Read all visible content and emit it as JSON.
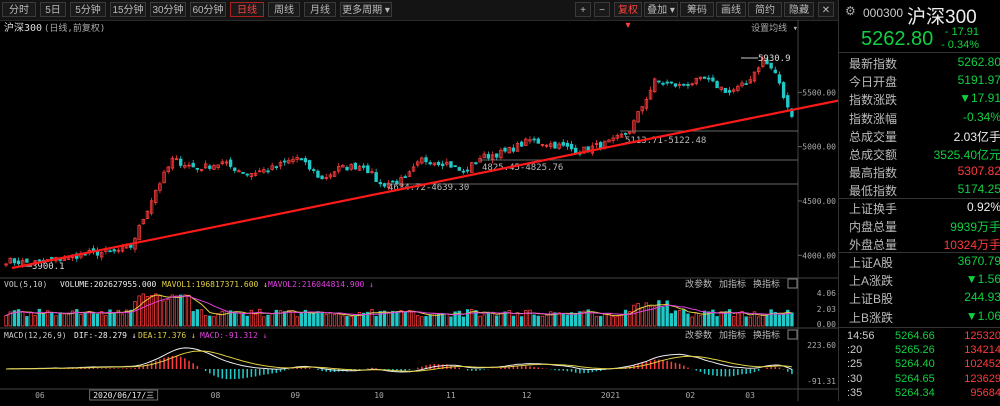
{
  "toolbar": {
    "buttons": [
      "分时",
      "5日",
      "5分钟",
      "15分钟",
      "30分钟",
      "60分钟",
      "日线",
      "周线",
      "月线",
      "更多周期"
    ],
    "active": "日线",
    "right_buttons": [
      "复权",
      "叠加",
      "筹码",
      "画线",
      "简约",
      "隐藏"
    ],
    "plus": "+",
    "minus": "−",
    "close": "✕"
  },
  "chart": {
    "name": "沪深300",
    "mode": "(日线,前复权)",
    "indicator_btn": "设置均线",
    "price_ticks": [
      {
        "label": "5500.00",
        "v": 5500
      },
      {
        "label": "5000.00",
        "v": 5000
      },
      {
        "label": "4500.00",
        "v": 4500
      },
      {
        "label": "4000.00",
        "v": 4000
      }
    ],
    "annotations": {
      "high": "5930.9",
      "low": "3900.1",
      "a1": "4634.72-4639.30",
      "a2": "4825.45-4825.76",
      "a3": "5113.71-5122.48"
    },
    "volume": {
      "label": "VOL(5,10)",
      "volume": "VOLUME:202627955.000",
      "mavol1": "MAVOL1:196817371.600",
      "mavol2": "MAVOL2:216044814.900",
      "ticks": [
        "4.06",
        "2.03",
        "0.00"
      ],
      "buttons": [
        "改参数",
        "加指标",
        "换指标"
      ]
    },
    "macd": {
      "label": "MACD(12,26,9)",
      "dif": "DIF:-28.279",
      "dea": "DEA:17.376",
      "macd": "MACD:-91.312",
      "ticks": [
        "223.60",
        "-91.31"
      ],
      "buttons": [
        "改参数",
        "加指标",
        "换指标"
      ]
    },
    "x_labels": [
      {
        "label": "06",
        "pos": 0.05
      },
      {
        "label": "2020/06/17/三",
        "pos": 0.155
      },
      {
        "label": "08",
        "pos": 0.27
      },
      {
        "label": "09",
        "pos": 0.37
      },
      {
        "label": "10",
        "pos": 0.475
      },
      {
        "label": "11",
        "pos": 0.565
      },
      {
        "label": "12",
        "pos": 0.66
      },
      {
        "label": "2021",
        "pos": 0.765
      },
      {
        "label": "02",
        "pos": 0.865
      },
      {
        "label": "03",
        "pos": 0.94
      }
    ]
  },
  "panel": {
    "code": "000300",
    "name": "沪深300",
    "price": "5262.80",
    "change": "- 17.91",
    "pct": "- 0.34%",
    "rows": [
      {
        "label": "最新指数",
        "val": "5262.80",
        "cls": "green"
      },
      {
        "label": "今日开盘",
        "val": "5191.97",
        "cls": "green"
      },
      {
        "label": "指数涨跌",
        "val": "▼17.91",
        "cls": "green"
      },
      {
        "label": "指数涨幅",
        "val": "-0.34%",
        "cls": "green"
      },
      {
        "label": "总成交量",
        "val": "2.03亿手",
        "cls": "white"
      },
      {
        "label": "总成交额",
        "val": "3525.40亿元",
        "cls": "green"
      },
      {
        "label": "最高指数",
        "val": "5307.82",
        "cls": "red"
      },
      {
        "label": "最低指数",
        "val": "5174.25",
        "cls": "green"
      }
    ],
    "rows2": [
      {
        "label": "上证换手",
        "val": "0.92%",
        "cls": "white"
      },
      {
        "label": "内盘总量",
        "val": "9939万手",
        "cls": "green"
      },
      {
        "label": "外盘总量",
        "val": "10324万手",
        "cls": "red"
      }
    ],
    "rows3": [
      {
        "label": "上证A股",
        "val": "3670.79",
        "cls": "green"
      },
      {
        "label": "上A涨跌",
        "val": "▼1.56",
        "cls": "green"
      },
      {
        "label": "上证B股",
        "val": "244.93",
        "cls": "green"
      },
      {
        "label": "上B涨跌",
        "val": "▼1.06",
        "cls": "green"
      }
    ],
    "ticks": [
      {
        "time": "14:56",
        "price": "5264.66",
        "vol": "125320"
      },
      {
        "time": ":20",
        "price": "5265.26",
        "vol": "134214"
      },
      {
        "time": ":25",
        "price": "5264.40",
        "vol": "102452"
      },
      {
        "time": ":30",
        "price": "5264.65",
        "vol": "123629"
      },
      {
        "time": ":35",
        "price": "5264.34",
        "vol": "95684"
      }
    ]
  },
  "colors": {
    "up": "#ff3b3b",
    "down": "#20c8c8",
    "trend": "#ff1a1a",
    "ma_yellow": "#e0d040",
    "ma_magenta": "#e040e0"
  }
}
